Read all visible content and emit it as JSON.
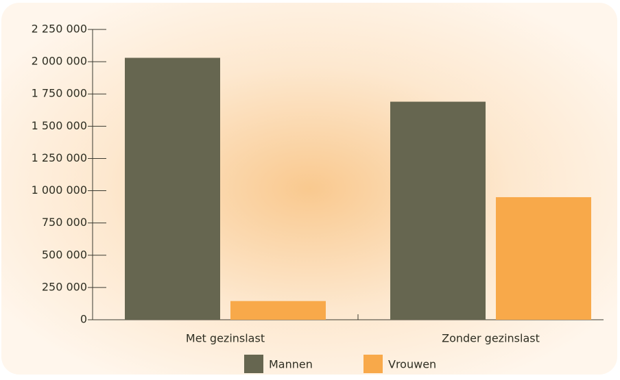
{
  "chart_data": {
    "type": "bar",
    "categories": [
      "Met gezinslast",
      "Zonder gezinslast"
    ],
    "series": [
      {
        "name": "Mannen",
        "color": "#666650",
        "values": [
          2030000,
          1690000
        ]
      },
      {
        "name": "Vrouwen",
        "color": "#f8a94a",
        "values": [
          145000,
          950000
        ]
      }
    ],
    "ylim": [
      0,
      2250000
    ],
    "yticks": [
      0,
      {
        "value": 250000,
        "label": "250 000"
      },
      {
        "value": 500000,
        "label": "500 000"
      },
      {
        "value": 750000,
        "label": "750 000"
      },
      {
        "value": 1000000,
        "label": "1 000 000"
      },
      {
        "value": 1250000,
        "label": "1 250 000"
      },
      {
        "value": 1500000,
        "label": "1 500 000"
      },
      {
        "value": 1750000,
        "label": "1 750 000"
      },
      {
        "value": 2000000,
        "label": "2 000 000"
      },
      {
        "value": 2250000,
        "label": "2 250 000"
      }
    ],
    "grid": false,
    "legend": "bottom"
  }
}
